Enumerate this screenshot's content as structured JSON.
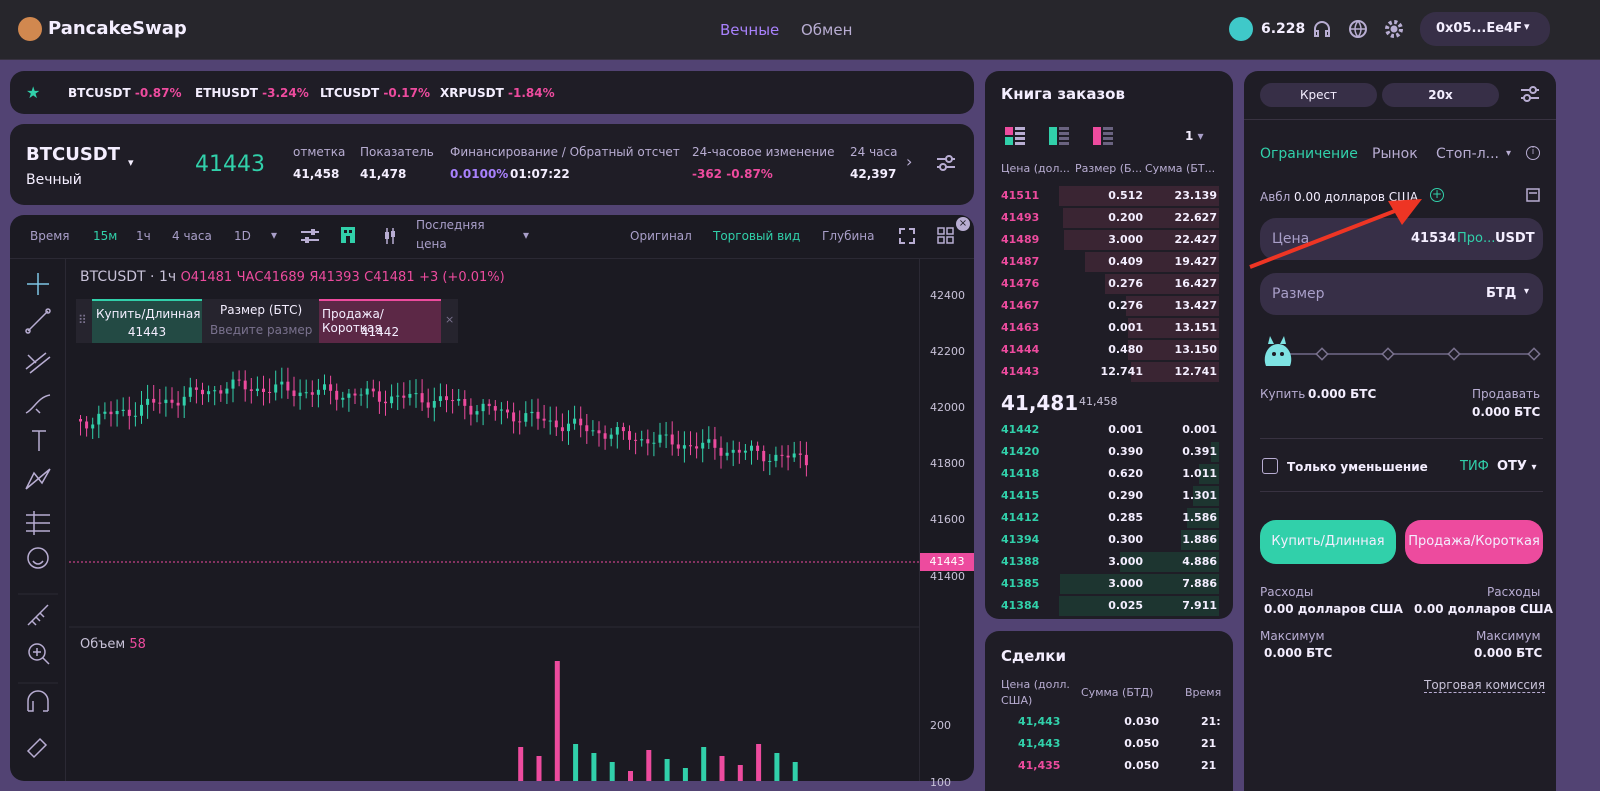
{
  "nav": {
    "logo": "PancakeSwap",
    "tabs": [
      "Вечные",
      "Обмен"
    ],
    "cake_balance": "6.228",
    "wallet": "0x05...Ee4F"
  },
  "colors": {
    "accent": "#31d0aa",
    "pink": "#ed4b9e",
    "purple": "#a881fc",
    "bg": "#1f1d26"
  },
  "ticker": [
    {
      "sym": "BTCUSDT",
      "chg": "-0.87%"
    },
    {
      "sym": "ETHUSDT",
      "chg": "-3.24%"
    },
    {
      "sym": "LTCUSDT",
      "chg": "-0.17%"
    },
    {
      "sym": "XRPUSDT",
      "chg": "-1.84%"
    }
  ],
  "market": {
    "pair": "BTCUSDT",
    "type": "Вечный",
    "price": "41443",
    "stats": [
      {
        "label": "отметка",
        "value": "41,458"
      },
      {
        "label": "Показатель",
        "value": "41,478"
      },
      {
        "label": "Финансирование / Обратный отсчет",
        "value": "0.0100%",
        "value2": "01:07:22"
      },
      {
        "label": "24-часовое изменение",
        "value": "-362 -0.87%"
      },
      {
        "label": "24 часа",
        "value": "42,397"
      }
    ]
  },
  "chart": {
    "toolbar": {
      "time": "Время",
      "intervals": [
        "15м",
        "1ч",
        "4 часа",
        "1D"
      ],
      "last_price_1": "Последняя",
      "last_price_2": "цена",
      "views": [
        "Оригинал",
        "Торговый вид",
        "Глубина"
      ]
    },
    "legend": {
      "pair": "BTCUSDT",
      "interval": "1ч",
      "o": "O41481",
      "h": "ЧАС41689",
      "l": "Я41393",
      "c": "C41481",
      "chg": "+3 (+0.01%)"
    },
    "quick": {
      "buy": "Купить/Длинная",
      "buy_price": "41443",
      "size": "Размер (БТС)",
      "size_ph": "Введите размер",
      "sell": "Продажа/Короткая",
      "sell_price": "41442"
    },
    "price_axis": [
      "42400",
      "42200",
      "42000",
      "41800",
      "41600",
      "41400"
    ],
    "current_price": "41443",
    "volume_label": "Объем",
    "volume_value": "58",
    "volume_axis": [
      "200",
      "100"
    ]
  },
  "orderbook": {
    "title": "Книга заказов",
    "precision": "1",
    "headers": [
      "Цена (дол...",
      "Размер (Б...",
      "Сумма (БТ..."
    ],
    "asks": [
      [
        "41511",
        "0.512",
        "23.139"
      ],
      [
        "41493",
        "0.200",
        "22.627"
      ],
      [
        "41489",
        "3.000",
        "22.427"
      ],
      [
        "41487",
        "0.409",
        "19.427"
      ],
      [
        "41476",
        "0.276",
        "16.427"
      ],
      [
        "41467",
        "0.276",
        "13.427"
      ],
      [
        "41463",
        "0.001",
        "13.151"
      ],
      [
        "41444",
        "0.480",
        "13.150"
      ],
      [
        "41443",
        "12.741",
        "12.741"
      ]
    ],
    "mid": "41,481",
    "mid_mark": "41,458",
    "bids": [
      [
        "41442",
        "0.001",
        "0.001"
      ],
      [
        "41420",
        "0.390",
        "0.391"
      ],
      [
        "41418",
        "0.620",
        "1.011"
      ],
      [
        "41415",
        "0.290",
        "1.301"
      ],
      [
        "41412",
        "0.285",
        "1.586"
      ],
      [
        "41394",
        "0.300",
        "1.886"
      ],
      [
        "41388",
        "3.000",
        "4.886"
      ],
      [
        "41385",
        "3.000",
        "7.886"
      ],
      [
        "41384",
        "0.025",
        "7.911"
      ]
    ]
  },
  "trades": {
    "title": "Сделки",
    "headers": [
      "Цена (долл.",
      "США)",
      "Сумма (БТД)",
      "Время"
    ],
    "rows": [
      [
        "41,443",
        "0.030",
        "21:"
      ],
      [
        "41,443",
        "0.050",
        "21"
      ],
      [
        "41,435",
        "0.050",
        "21"
      ]
    ]
  },
  "order": {
    "margin": "Крест",
    "leverage": "20x",
    "types": [
      "Ограничение",
      "Рынок",
      "Стоп-л..."
    ],
    "avbl_label": "Авбл",
    "avbl": "0.00 долларов США",
    "price_label": "Цена",
    "price_value": "41534",
    "price_mid": "Про...",
    "price_unit": "USDT",
    "size_label": "Размер",
    "size_unit": "БТД",
    "buy_label": "Купить",
    "buy_amt": "0.000 БТС",
    "sell_label": "Продавать",
    "sell_amt": "0.000 БТС",
    "reduce": "Только уменьшение",
    "tif_label": "ТИФ",
    "tif": "ОТУ",
    "buy_btn": "Купить/Длинная",
    "sell_btn": "Продажа/Короткая",
    "cost": "Расходы",
    "cost_v": "0.00 долларов США",
    "max": "Максимум",
    "max_v": "0.000 БТС",
    "fee": "Торговая комиссия"
  }
}
